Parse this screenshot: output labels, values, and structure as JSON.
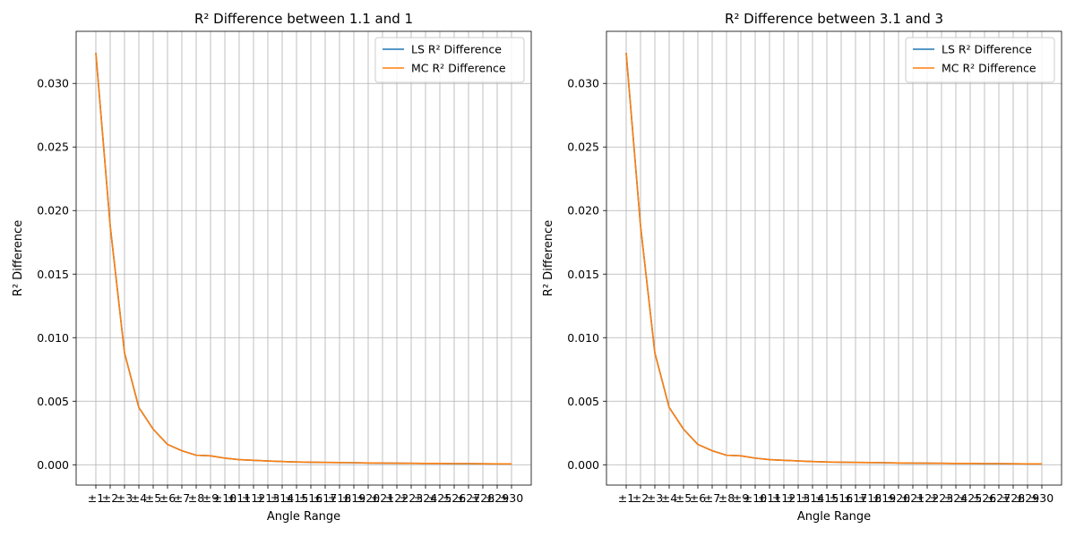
{
  "colors": {
    "ls": "#1f77b4",
    "mc": "#ff7f0e",
    "grid": "#b0b0b0",
    "axes": "#000000"
  },
  "chart_data": [
    {
      "type": "line",
      "title": "R² Difference between 1.1 and 1",
      "xlabel": "Angle Range",
      "ylabel": "R² Difference",
      "categories": [
        "±1",
        "±2",
        "±3",
        "±4",
        "±5",
        "±6",
        "±7",
        "±8",
        "±9",
        "±10",
        "±11",
        "±12",
        "±13",
        "±14",
        "±15",
        "±16",
        "±17",
        "±18",
        "±19",
        "±20",
        "±21",
        "±22",
        "±23",
        "±24",
        "±25",
        "±26",
        "±27",
        "±28",
        "±29",
        "±30"
      ],
      "ylim": [
        -0.0016,
        0.0341
      ],
      "yticks": [
        0.0,
        0.005,
        0.01,
        0.015,
        0.02,
        0.025,
        0.03
      ],
      "ytick_labels": [
        "0.000",
        "0.005",
        "0.010",
        "0.015",
        "0.020",
        "0.025",
        "0.030"
      ],
      "grid": true,
      "legend": "top-right",
      "series": [
        {
          "name": "LS R² Difference",
          "color_key": "ls",
          "values": [
            0.0324,
            0.0188,
            0.0088,
            0.0045,
            0.0028,
            0.0016,
            0.0011,
            0.00075,
            0.0007,
            0.00052,
            0.0004,
            0.00035,
            0.0003,
            0.00025,
            0.00022,
            0.0002,
            0.00018,
            0.00017,
            0.00016,
            0.00014,
            0.00013,
            0.00012,
            0.00011,
            0.0001,
            0.0001,
            9e-05,
            9e-05,
            8e-05,
            7e-05,
            7e-05
          ]
        },
        {
          "name": "MC R² Difference",
          "color_key": "mc",
          "values": [
            0.0324,
            0.0188,
            0.0088,
            0.0045,
            0.0028,
            0.0016,
            0.0011,
            0.00075,
            0.0007,
            0.00052,
            0.0004,
            0.00035,
            0.0003,
            0.00025,
            0.00022,
            0.0002,
            0.00018,
            0.00017,
            0.00016,
            0.00014,
            0.00013,
            0.00012,
            0.00011,
            0.0001,
            0.0001,
            9e-05,
            9e-05,
            8e-05,
            7e-05,
            7e-05
          ]
        }
      ]
    },
    {
      "type": "line",
      "title": "R² Difference between 3.1 and 3",
      "xlabel": "Angle Range",
      "ylabel": "R² Difference",
      "categories": [
        "±1",
        "±2",
        "±3",
        "±4",
        "±5",
        "±6",
        "±7",
        "±8",
        "±9",
        "±10",
        "±11",
        "±12",
        "±13",
        "±14",
        "±15",
        "±16",
        "±17",
        "±18",
        "±19",
        "±20",
        "±21",
        "±22",
        "±23",
        "±24",
        "±25",
        "±26",
        "±27",
        "±28",
        "±29",
        "±30"
      ],
      "ylim": [
        -0.0016,
        0.0341
      ],
      "yticks": [
        0.0,
        0.005,
        0.01,
        0.015,
        0.02,
        0.025,
        0.03
      ],
      "ytick_labels": [
        "0.000",
        "0.005",
        "0.010",
        "0.015",
        "0.020",
        "0.025",
        "0.030"
      ],
      "grid": true,
      "legend": "top-right",
      "series": [
        {
          "name": "LS R² Difference",
          "color_key": "ls",
          "values": [
            0.0324,
            0.0188,
            0.0088,
            0.0045,
            0.0028,
            0.0016,
            0.0011,
            0.00075,
            0.0007,
            0.00052,
            0.0004,
            0.00035,
            0.0003,
            0.00025,
            0.00022,
            0.0002,
            0.00018,
            0.00017,
            0.00016,
            0.00014,
            0.00013,
            0.00012,
            0.00011,
            0.0001,
            0.0001,
            9e-05,
            9e-05,
            8e-05,
            7e-05,
            7e-05
          ]
        },
        {
          "name": "MC R² Difference",
          "color_key": "mc",
          "values": [
            0.0324,
            0.0188,
            0.0088,
            0.0045,
            0.0028,
            0.0016,
            0.0011,
            0.00075,
            0.0007,
            0.00052,
            0.0004,
            0.00035,
            0.0003,
            0.00025,
            0.00022,
            0.0002,
            0.00018,
            0.00017,
            0.00016,
            0.00014,
            0.00013,
            0.00012,
            0.00011,
            0.0001,
            0.0001,
            9e-05,
            9e-05,
            8e-05,
            7e-05,
            7e-05
          ]
        }
      ]
    }
  ]
}
